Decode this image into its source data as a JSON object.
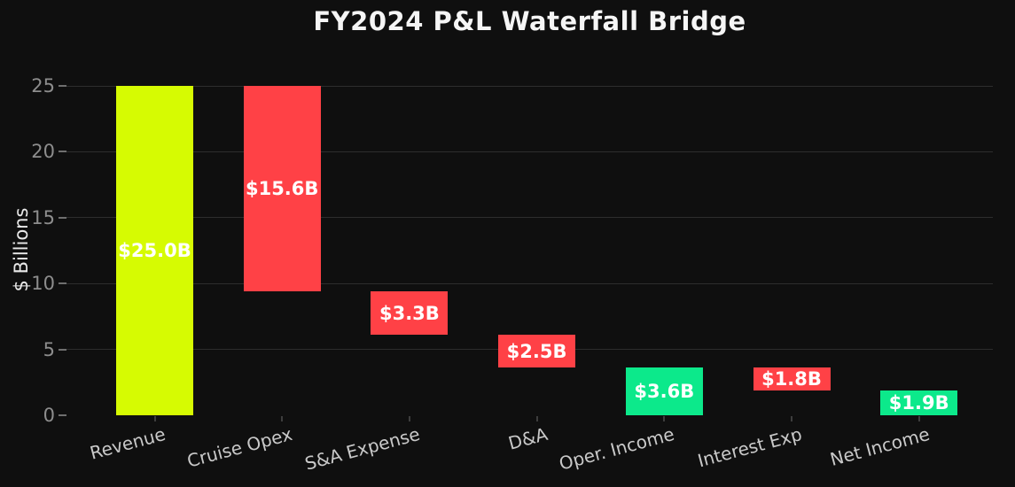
{
  "chart_data": {
    "type": "bar",
    "subtype": "waterfall",
    "title": "FY2024 P&L Waterfall Bridge",
    "ylabel": "$ Billions",
    "xlabel": "",
    "ylim": [
      0,
      25
    ],
    "yticks": [
      0,
      5,
      10,
      15,
      20,
      25
    ],
    "grid": true,
    "legend": "none",
    "background": "#0f0f0f",
    "colors": {
      "increase": "#d6fb02",
      "decrease": "#ff4146",
      "total": "#0ce98b",
      "grid": "#2d2d2d",
      "title_text": "#f5f5f5",
      "axis_text": "#8d8d8d",
      "xlabel_text": "#c9c9c9",
      "ylabel_text": "#e9e9e9",
      "bar_label_text": "#ffffff"
    },
    "categories": [
      "Revenue",
      "Cruise Opex",
      "S&A Expense",
      "D&A",
      "Oper. Income",
      "Interest Exp",
      "Net Income"
    ],
    "bars": [
      {
        "category": "Revenue",
        "value_label": "$25.0B",
        "start": 0,
        "end": 25.0,
        "role": "increase"
      },
      {
        "category": "Cruise Opex",
        "value_label": "$15.6B",
        "start": 25.0,
        "end": 9.4,
        "role": "decrease"
      },
      {
        "category": "S&A Expense",
        "value_label": "$3.3B",
        "start": 9.4,
        "end": 6.1,
        "role": "decrease"
      },
      {
        "category": "D&A",
        "value_label": "$2.5B",
        "start": 6.1,
        "end": 3.6,
        "role": "decrease"
      },
      {
        "category": "Oper. Income",
        "value_label": "$3.6B",
        "start": 0,
        "end": 3.6,
        "role": "total"
      },
      {
        "category": "Interest Exp",
        "value_label": "$1.8B",
        "start": 3.6,
        "end": 1.9,
        "role": "decrease"
      },
      {
        "category": "Net Income",
        "value_label": "$1.9B",
        "start": 0,
        "end": 1.9,
        "role": "total"
      }
    ]
  }
}
